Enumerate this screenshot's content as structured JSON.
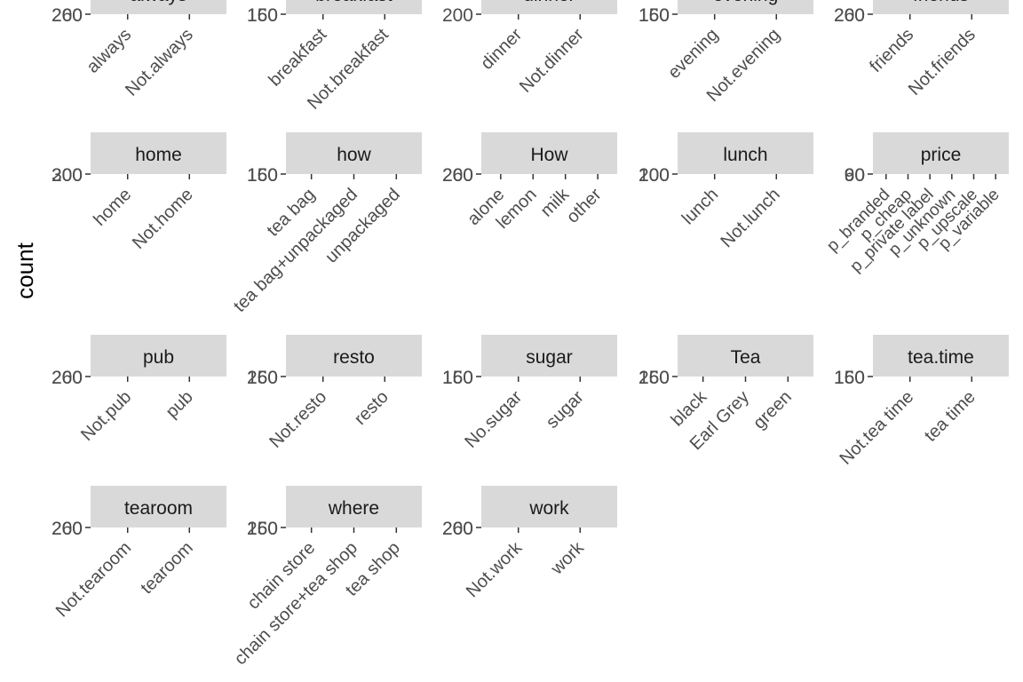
{
  "chart_data": {
    "type": "bar",
    "ylabel": "count",
    "facet_strip_color": "#d9d9d9",
    "tick_color": "#333333",
    "facets": [
      {
        "strip": "always",
        "y_tick_labels": [
          "260",
          "200"
        ],
        "categories": [
          "always",
          "Not.always"
        ],
        "values": [],
        "clipped": true
      },
      {
        "strip": "breakfast",
        "y_tick_labels": [
          "160",
          "150"
        ],
        "categories": [
          "breakfast",
          "Not.breakfast"
        ],
        "values": [],
        "clipped": true
      },
      {
        "strip": "dinner",
        "y_tick_labels": [
          "200"
        ],
        "categories": [
          "dinner",
          "Not.dinner"
        ],
        "values": [],
        "clipped": true
      },
      {
        "strip": "evening",
        "y_tick_labels": [
          "160",
          "150"
        ],
        "categories": [
          "evening",
          "Not.evening"
        ],
        "values": [],
        "clipped": true
      },
      {
        "strip": "friends",
        "y_tick_labels": [
          "260",
          "200"
        ],
        "categories": [
          "friends",
          "Not.friends"
        ],
        "values": [],
        "clipped": true
      },
      {
        "strip": "home",
        "y_tick_labels": [
          "300",
          "200"
        ],
        "categories": [
          "home",
          "Not.home"
        ],
        "values": []
      },
      {
        "strip": "how",
        "y_tick_labels": [
          "160",
          "150"
        ],
        "categories": [
          "tea bag",
          "tea bag+unpackaged",
          "unpackaged"
        ],
        "values": []
      },
      {
        "strip": "How",
        "y_tick_labels": [
          "260",
          "200"
        ],
        "categories": [
          "alone",
          "lemon",
          "milk",
          "other"
        ],
        "values": []
      },
      {
        "strip": "lunch",
        "y_tick_labels": [
          "200",
          "100"
        ],
        "categories": [
          "lunch",
          "Not.lunch"
        ],
        "values": []
      },
      {
        "strip": "price",
        "y_tick_labels": [
          "90",
          "60"
        ],
        "categories": [
          "p_branded",
          "p_cheap",
          "p_private label",
          "p_unknown",
          "p_upscale",
          "p_variable"
        ],
        "values": []
      },
      {
        "strip": "pub",
        "y_tick_labels": [
          "260",
          "200"
        ],
        "categories": [
          "Not.pub",
          "pub"
        ],
        "values": []
      },
      {
        "strip": "resto",
        "y_tick_labels": [
          "260",
          "150"
        ],
        "categories": [
          "Not.resto",
          "resto"
        ],
        "values": []
      },
      {
        "strip": "sugar",
        "y_tick_labels": [
          "160",
          "150"
        ],
        "categories": [
          "No.sugar",
          "sugar"
        ],
        "values": []
      },
      {
        "strip": "Tea",
        "y_tick_labels": [
          "260",
          "150"
        ],
        "categories": [
          "black",
          "Earl Grey",
          "green"
        ],
        "values": []
      },
      {
        "strip": "tea.time",
        "y_tick_labels": [
          "160",
          "150"
        ],
        "categories": [
          "Not.tea time",
          "tea time"
        ],
        "values": []
      },
      {
        "strip": "tearoom",
        "y_tick_labels": [
          "260",
          "200"
        ],
        "categories": [
          "Not.tearoom",
          "tearoom"
        ],
        "values": []
      },
      {
        "strip": "where",
        "y_tick_labels": [
          "260",
          "150"
        ],
        "categories": [
          "chain store",
          "chain store+tea shop",
          "tea shop"
        ],
        "values": []
      },
      {
        "strip": "work",
        "y_tick_labels": [
          "260",
          "200"
        ],
        "categories": [
          "Not.work",
          "work"
        ],
        "values": []
      }
    ]
  }
}
